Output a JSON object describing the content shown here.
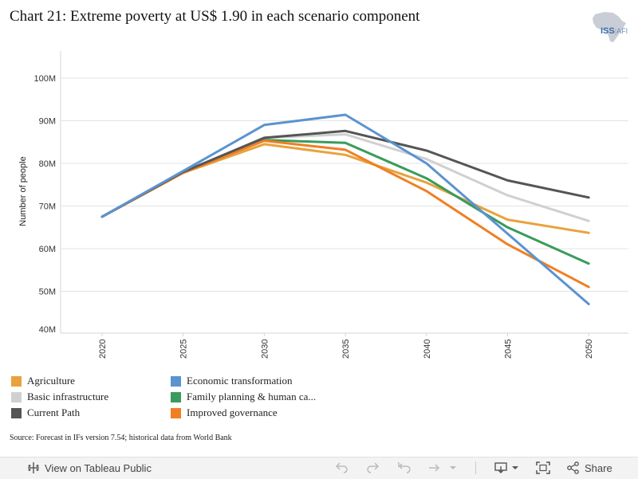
{
  "title": "Chart 21: Extreme poverty at US$ 1.90 in each scenario component",
  "logo": {
    "main": "ISS",
    "sub": "AFI"
  },
  "source": "Source: Forecast in IFs version 7.54; historical data from World Bank",
  "chart_data": {
    "type": "line",
    "title": "Chart 21: Extreme poverty at US$ 1.90 in each scenario component",
    "xlabel": "",
    "ylabel": "Number of people",
    "x": [
      2020,
      2025,
      2030,
      2035,
      2040,
      2045,
      2050
    ],
    "x_tick_labels": [
      "2020",
      "2025",
      "2030",
      "2035",
      "2040",
      "2045",
      "2050"
    ],
    "ylim": [
      40,
      106
    ],
    "y_ticks": [
      40,
      50,
      60,
      70,
      80,
      90,
      100
    ],
    "y_tick_labels": [
      "40M",
      "50M",
      "60M",
      "70M",
      "80M",
      "90M",
      "100M"
    ],
    "grid": true,
    "legend_position": "bottom",
    "series": [
      {
        "name": "Basic infrastructure",
        "color": "#d0d0d0",
        "values": [
          67.5,
          78.0,
          86.0,
          86.8,
          81.0,
          72.5,
          66.5
        ]
      },
      {
        "name": "Agriculture",
        "color": "#e8a33c",
        "values": [
          67.5,
          77.8,
          84.5,
          82.0,
          75.5,
          66.8,
          63.7
        ]
      },
      {
        "name": "Family planning & human ca...",
        "color": "#3a9b5c",
        "values": [
          67.5,
          78.0,
          85.5,
          84.8,
          76.5,
          65.0,
          56.5
        ]
      },
      {
        "name": "Improved governance",
        "color": "#f07f22",
        "values": [
          67.5,
          77.8,
          85.3,
          83.2,
          73.5,
          61.0,
          51.0
        ]
      },
      {
        "name": "Current Path",
        "color": "#555555",
        "values": [
          67.5,
          78.0,
          86.0,
          87.6,
          83.0,
          76.0,
          72.0
        ]
      },
      {
        "name": "Economic transformation",
        "color": "#5b93cf",
        "values": [
          67.5,
          78.2,
          89.0,
          91.4,
          80.0,
          63.5,
          47.0
        ]
      }
    ]
  },
  "legend": [
    {
      "name": "Agriculture",
      "color": "#e8a33c"
    },
    {
      "name": "Economic transformation",
      "color": "#5b93cf"
    },
    {
      "name": "Basic infrastructure",
      "color": "#d0d0d0"
    },
    {
      "name": "Family planning & human ca...",
      "color": "#3a9b5c"
    },
    {
      "name": "Current Path",
      "color": "#555555"
    },
    {
      "name": "Improved governance",
      "color": "#f07f22"
    }
  ],
  "toolbar": {
    "view_label": "View on Tableau Public",
    "share_label": "Share",
    "icons": [
      "tableau-icon",
      "undo-icon",
      "redo-icon",
      "revert-icon",
      "refresh-icon",
      "download-icon",
      "fullscreen-icon",
      "share-icon"
    ]
  }
}
